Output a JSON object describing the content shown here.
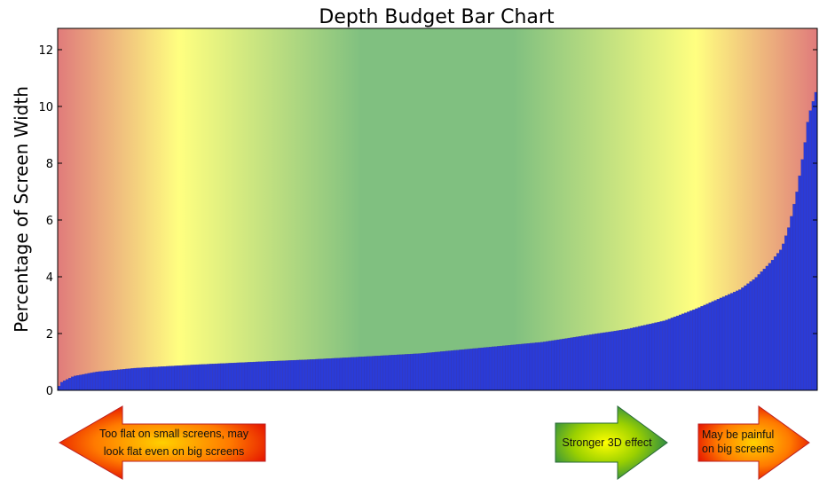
{
  "chart_data": {
    "type": "bar",
    "title": "Depth Budget Bar Chart",
    "xlabel": "",
    "ylabel": "Percentage of Screen Width",
    "ylim": [
      0,
      12.75
    ],
    "yticks": [
      "0",
      "2",
      "4",
      "6",
      "8",
      "10",
      "12"
    ],
    "grid": false,
    "bar_color": "#2a3bd8",
    "background_gradient": [
      "#e07b7b",
      "#ffff80",
      "#80c080",
      "#80c080",
      "#ffff80",
      "#e07b7b"
    ],
    "n_bars": 280,
    "anchor_positions": [
      0.0,
      0.004,
      0.02,
      0.05,
      0.1,
      0.18,
      0.26,
      0.33,
      0.38,
      0.48,
      0.56,
      0.64,
      0.7,
      0.75,
      0.8,
      0.84,
      0.87,
      0.9,
      0.92,
      0.94,
      0.955,
      0.965,
      0.975,
      0.985,
      0.99,
      1.0
    ],
    "anchor_values": [
      0.15,
      0.3,
      0.5,
      0.65,
      0.78,
      0.9,
      1.0,
      1.08,
      1.15,
      1.3,
      1.5,
      1.7,
      1.95,
      2.15,
      2.45,
      2.85,
      3.2,
      3.55,
      3.95,
      4.5,
      5.0,
      5.8,
      7.0,
      8.6,
      9.6,
      10.5
    ]
  },
  "arrows": {
    "left": {
      "text_line1": "Too flat on small screens, may",
      "text_line2": "look flat even on big screens",
      "colors": [
        "#ffd000",
        "#ff7a00",
        "#e00000"
      ]
    },
    "middle": {
      "text_line1": "Stronger 3D effect",
      "colors": [
        "#ffff00",
        "#9ad000",
        "#1a8050"
      ]
    },
    "right": {
      "text_line1": "May be painful",
      "text_line2": "on big screens",
      "colors": [
        "#ffd000",
        "#ff7a00",
        "#e00000"
      ]
    }
  }
}
